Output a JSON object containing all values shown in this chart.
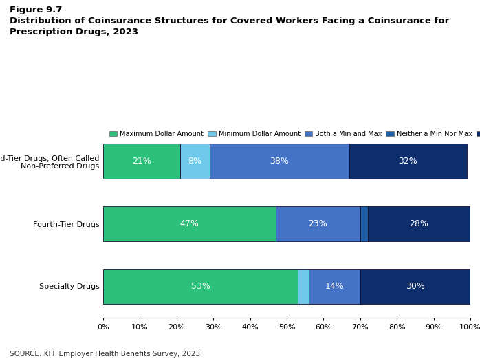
{
  "title_line1": "Figure 9.7",
  "title_line2": "Distribution of Coinsurance Structures for Covered Workers Facing a Coinsurance for\nPrescription Drugs, 2023",
  "categories": [
    "Third-Tier Drugs, Often Called\nNon-Preferred Drugs",
    "Fourth-Tier Drugs",
    "Specialty Drugs"
  ],
  "series": {
    "Maximum Dollar Amount": [
      21,
      47,
      53
    ],
    "Minimum Dollar Amount": [
      8,
      0,
      3
    ],
    "Both a Min and Max": [
      38,
      23,
      14
    ],
    "Neither a Min Nor Max": [
      0,
      2,
      0
    ],
    "Other": [
      32,
      28,
      30
    ]
  },
  "colors": {
    "Maximum Dollar Amount": "#2dc07a",
    "Minimum Dollar Amount": "#6ec9ea",
    "Both a Min and Max": "#4472c4",
    "Neither a Min Nor Max": "#1f5fa6",
    "Other": "#0d2d6b"
  },
  "source": "SOURCE: KFF Employer Health Benefits Survey, 2023",
  "background_color": "#ffffff",
  "bar_edge_color": "#111133",
  "bar_height": 0.55
}
